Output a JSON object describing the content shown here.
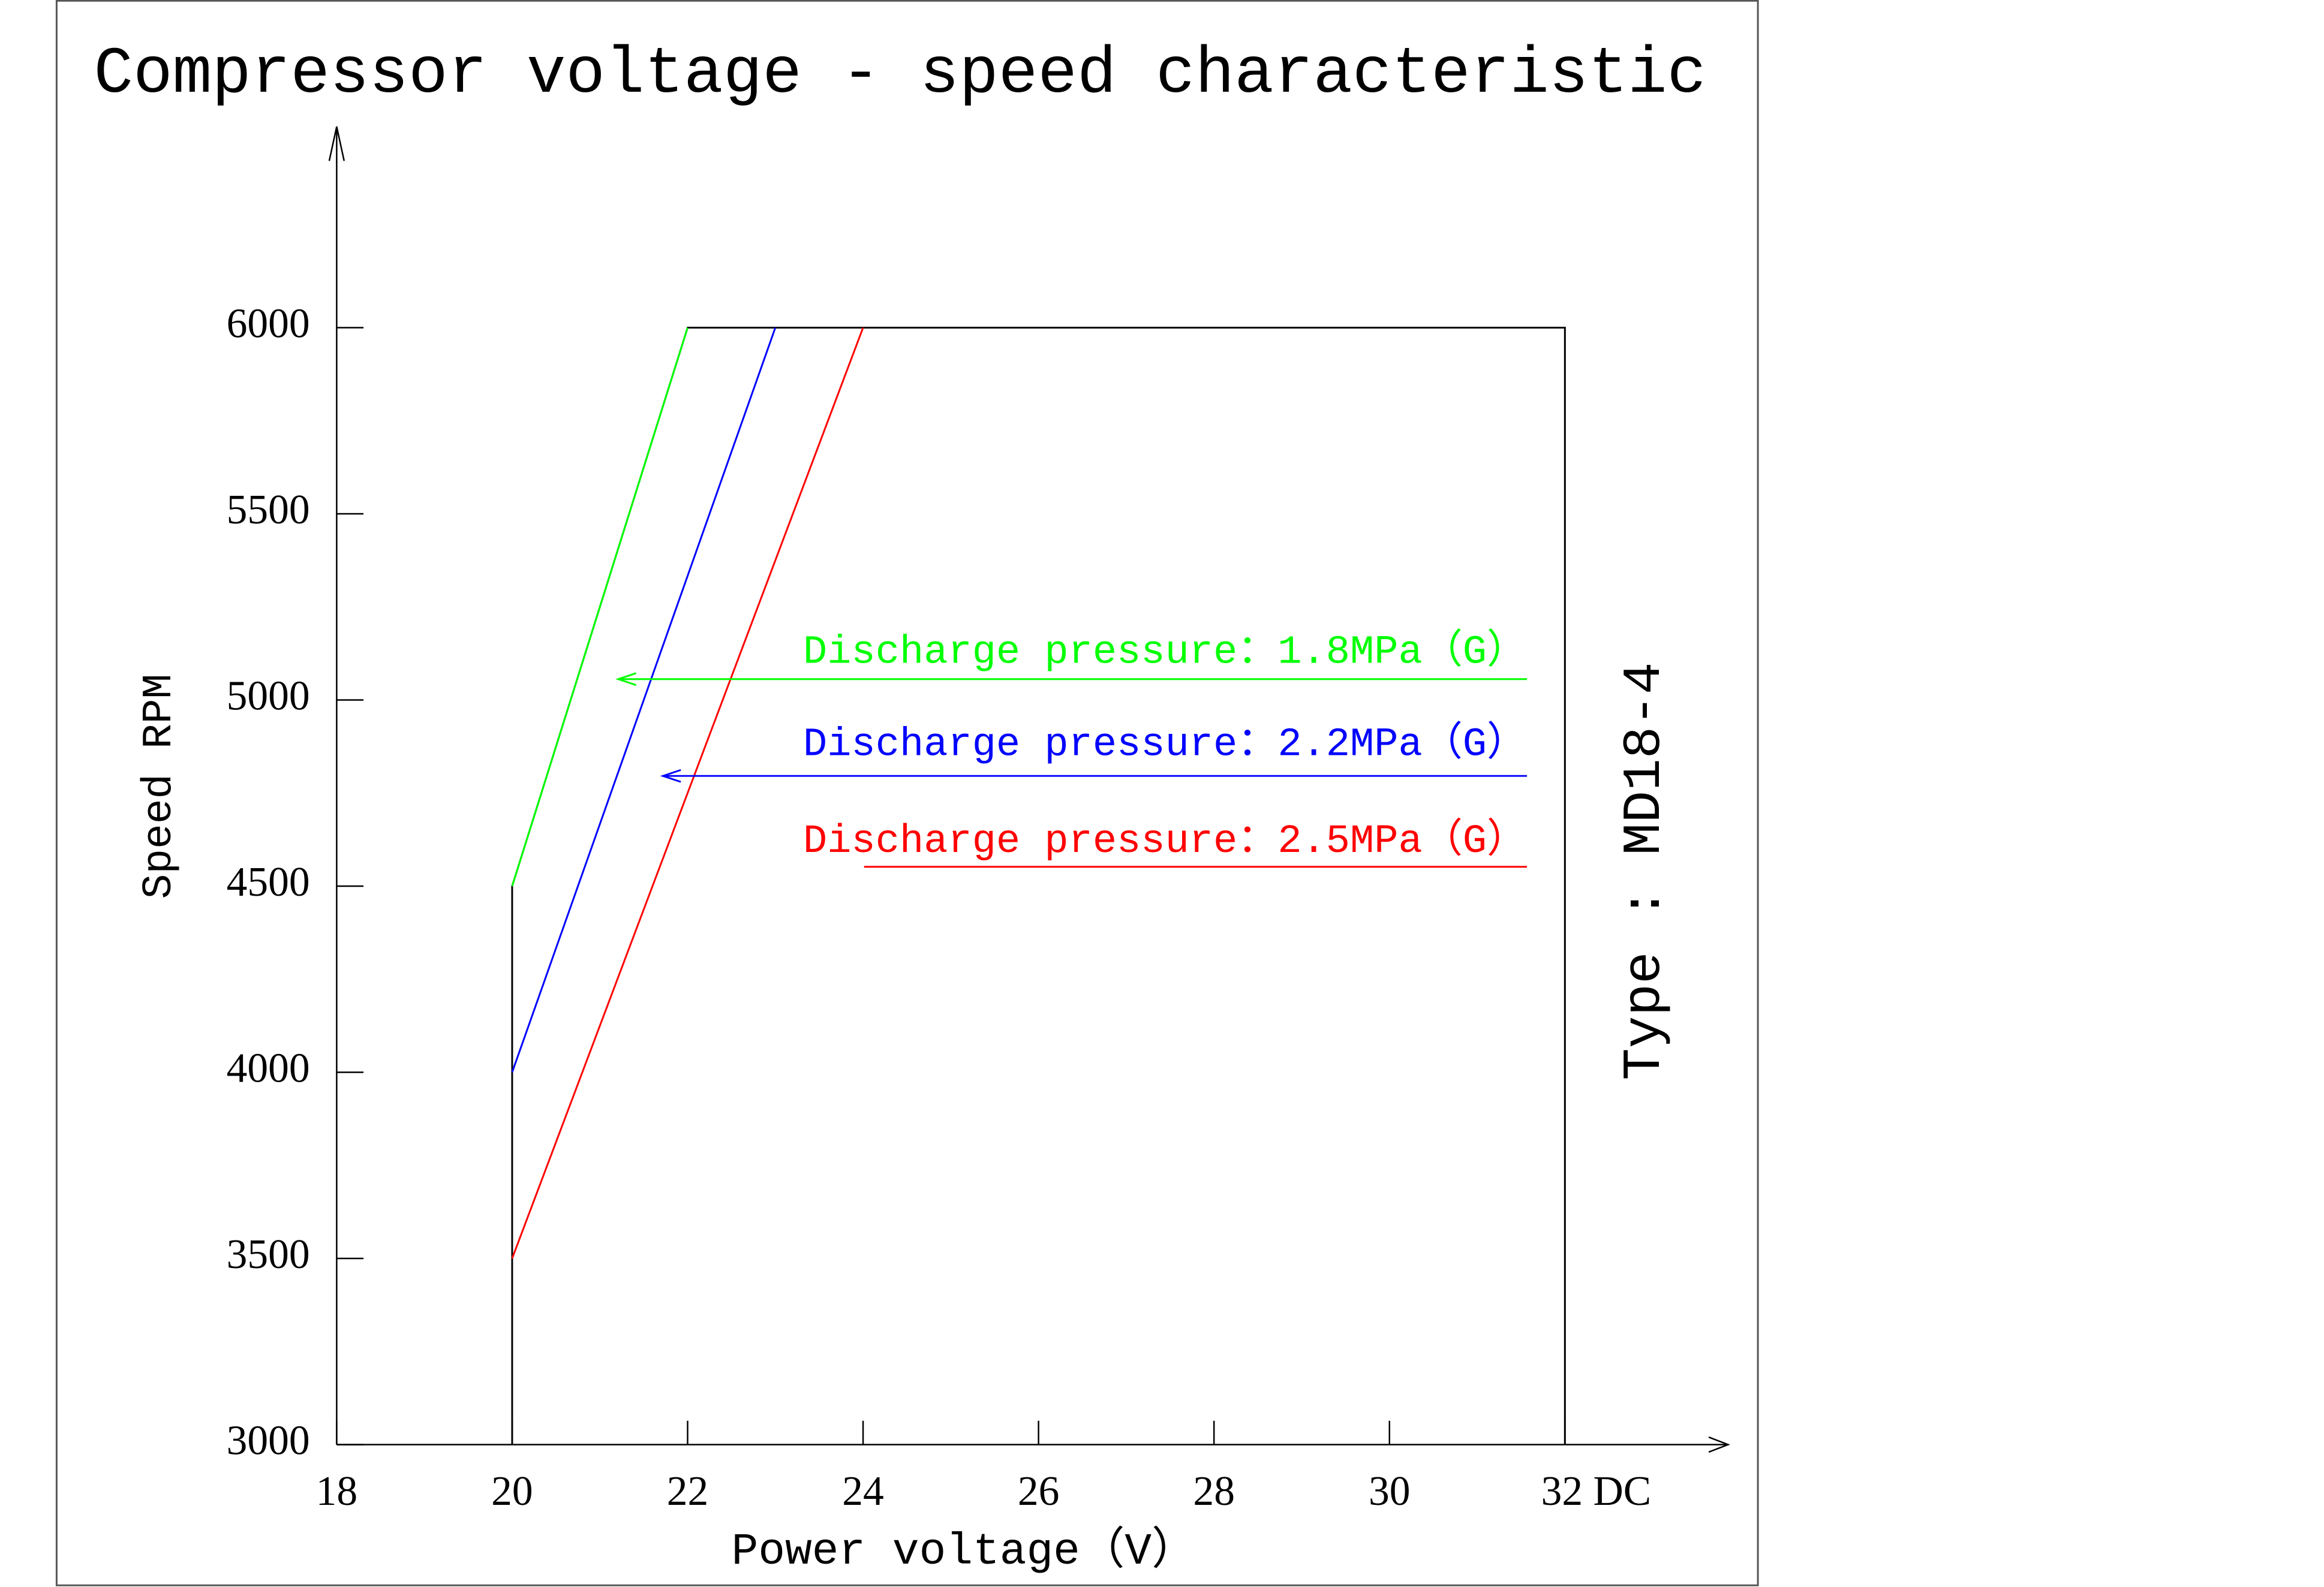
{
  "chart_data": {
    "type": "line",
    "title": "Compressor voltage - speed characteristic",
    "x_label": "Power voltage（V）",
    "y_label": "Speed RPM",
    "annotation": "Type : MD18-4",
    "xlim": [
      18,
      33.86
    ],
    "ylim": [
      3000,
      6540
    ],
    "xticks": [
      18,
      20,
      22,
      24,
      26,
      28,
      30,
      {
        "value": 32,
        "label": "32 DC"
      }
    ],
    "yticks": [
      3000,
      3500,
      4000,
      4500,
      5000,
      5500,
      6000
    ],
    "envelope": {
      "color": "#000000",
      "x": [
        20,
        20,
        22,
        32,
        32
      ],
      "values": [
        3000,
        4500,
        6000,
        6000,
        3000
      ]
    },
    "series": [
      {
        "name": "Discharge pressure：1.8MPa（G）",
        "color": "#00ff00",
        "x": [
          20,
          22
        ],
        "values": [
          4500,
          6000
        ]
      },
      {
        "name": "Discharge pressure：2.2MPa（G）",
        "color": "#0000ff",
        "x": [
          20,
          23
        ],
        "values": [
          4000,
          6000
        ]
      },
      {
        "name": "Discharge pressure：2.5MPa（G）",
        "color": "#ff0000",
        "x": [
          20,
          24
        ],
        "values": [
          3500,
          6000
        ]
      }
    ]
  }
}
